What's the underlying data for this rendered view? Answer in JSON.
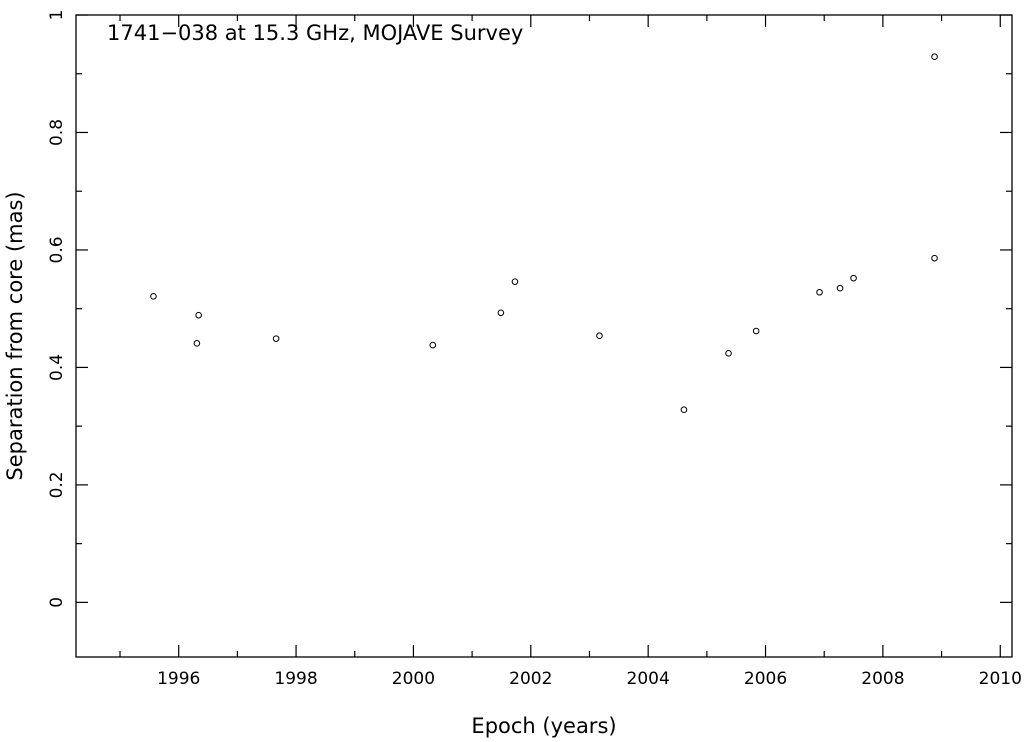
{
  "chart_data": {
    "type": "scatter",
    "title": "1741−038 at 15.3 GHz, MOJAVE Survey",
    "xlabel": "Epoch (years)",
    "ylabel": "Separation from core (mas)",
    "xlim": [
      1994.25,
      2010.2
    ],
    "ylim": [
      -0.093,
      1.0
    ],
    "x_ticks": [
      1996,
      1998,
      2000,
      2002,
      2004,
      2006,
      2008,
      2010
    ],
    "y_ticks": [
      0,
      0.2,
      0.4,
      0.6,
      0.8,
      1
    ],
    "x_tick_labels": [
      "1996",
      "1998",
      "2000",
      "2002",
      "2004",
      "2006",
      "2008",
      "2010"
    ],
    "y_tick_labels": [
      "0",
      "0.2",
      "0.4",
      "0.6",
      "0.8",
      "1"
    ],
    "grid": false,
    "marker": "open-circle",
    "points": [
      {
        "x": 1995.57,
        "y": 0.521
      },
      {
        "x": 1996.31,
        "y": 0.441
      },
      {
        "x": 1996.34,
        "y": 0.489
      },
      {
        "x": 1997.66,
        "y": 0.449
      },
      {
        "x": 2000.33,
        "y": 0.438
      },
      {
        "x": 2001.49,
        "y": 0.493
      },
      {
        "x": 2001.73,
        "y": 0.546
      },
      {
        "x": 2003.17,
        "y": 0.454
      },
      {
        "x": 2004.61,
        "y": 0.328
      },
      {
        "x": 2005.37,
        "y": 0.424
      },
      {
        "x": 2005.84,
        "y": 0.462
      },
      {
        "x": 2006.92,
        "y": 0.528
      },
      {
        "x": 2007.27,
        "y": 0.535
      },
      {
        "x": 2007.5,
        "y": 0.552
      },
      {
        "x": 2008.88,
        "y": 0.586
      },
      {
        "x": 2008.88,
        "y": 0.929
      }
    ]
  }
}
